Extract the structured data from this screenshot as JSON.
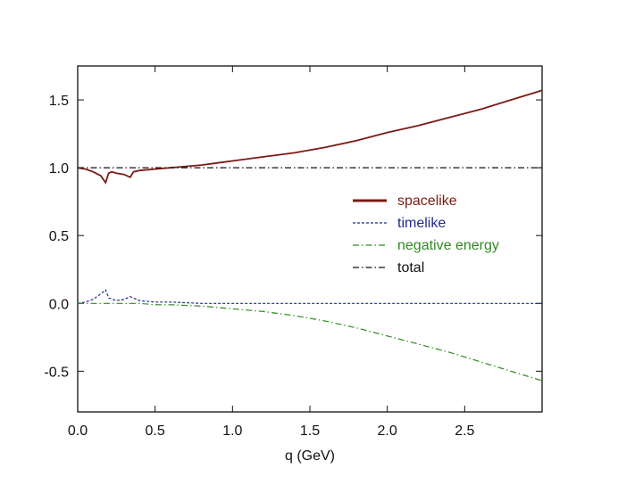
{
  "chart_data": {
    "type": "line",
    "title": "",
    "xlabel": "q (GeV)",
    "ylabel": "",
    "xlim": [
      0,
      3.0
    ],
    "ylim": [
      -0.8,
      1.75
    ],
    "x_ticks": [
      0.0,
      0.5,
      1.0,
      1.5,
      2.0,
      2.5
    ],
    "x_tick_labels": [
      "0.0",
      "0.5",
      "1.0",
      "1.5",
      "2.0",
      "2.5"
    ],
    "y_ticks": [
      -0.5,
      0.0,
      0.5,
      1.0,
      1.5
    ],
    "y_tick_labels": [
      "-0.5",
      "0.0",
      "0.5",
      "1.0",
      "1.5"
    ],
    "grid": false,
    "legend_position": "center-right",
    "series": [
      {
        "name": "spacelike",
        "color": "#7b1a14",
        "style": "solid",
        "x": [
          0.0,
          0.05,
          0.1,
          0.15,
          0.18,
          0.2,
          0.22,
          0.25,
          0.3,
          0.34,
          0.36,
          0.4,
          0.5,
          0.6,
          0.7,
          0.8,
          0.9,
          1.0,
          1.2,
          1.4,
          1.6,
          1.8,
          2.0,
          2.2,
          2.4,
          2.6,
          2.8,
          3.0
        ],
        "values": [
          1.0,
          0.99,
          0.97,
          0.94,
          0.89,
          0.96,
          0.97,
          0.96,
          0.95,
          0.93,
          0.97,
          0.98,
          0.99,
          1.0,
          1.01,
          1.02,
          1.035,
          1.05,
          1.08,
          1.11,
          1.15,
          1.2,
          1.26,
          1.31,
          1.37,
          1.43,
          1.5,
          1.57
        ]
      },
      {
        "name": "timelike",
        "color": "#1f2a8a",
        "style": "dashed",
        "x": [
          0.0,
          0.05,
          0.1,
          0.15,
          0.18,
          0.2,
          0.25,
          0.3,
          0.34,
          0.4,
          0.5,
          0.6,
          0.8,
          1.0,
          1.5,
          2.0,
          2.5,
          3.0
        ],
        "values": [
          0.0,
          0.01,
          0.03,
          0.07,
          0.1,
          0.04,
          0.02,
          0.03,
          0.05,
          0.02,
          0.01,
          0.01,
          0.0,
          0.0,
          0.0,
          0.0,
          0.0,
          0.0
        ]
      },
      {
        "name": "negative energy",
        "color": "#2e8b1f",
        "style": "dashdot",
        "x": [
          0.0,
          0.1,
          0.2,
          0.3,
          0.4,
          0.5,
          0.6,
          0.8,
          1.0,
          1.2,
          1.4,
          1.6,
          1.8,
          2.0,
          2.2,
          2.4,
          2.6,
          2.8,
          3.0
        ],
        "values": [
          0.0,
          0.0,
          0.0,
          0.0,
          0.0,
          -0.01,
          -0.01,
          -0.02,
          -0.04,
          -0.06,
          -0.09,
          -0.13,
          -0.18,
          -0.24,
          -0.3,
          -0.36,
          -0.43,
          -0.5,
          -0.57
        ]
      },
      {
        "name": "total",
        "color": "#111111",
        "style": "dashdot",
        "x": [
          0.0,
          0.5,
          1.0,
          1.5,
          2.0,
          2.5,
          3.0
        ],
        "values": [
          1.0,
          1.0,
          1.0,
          1.0,
          1.0,
          1.0,
          1.0
        ]
      }
    ]
  }
}
